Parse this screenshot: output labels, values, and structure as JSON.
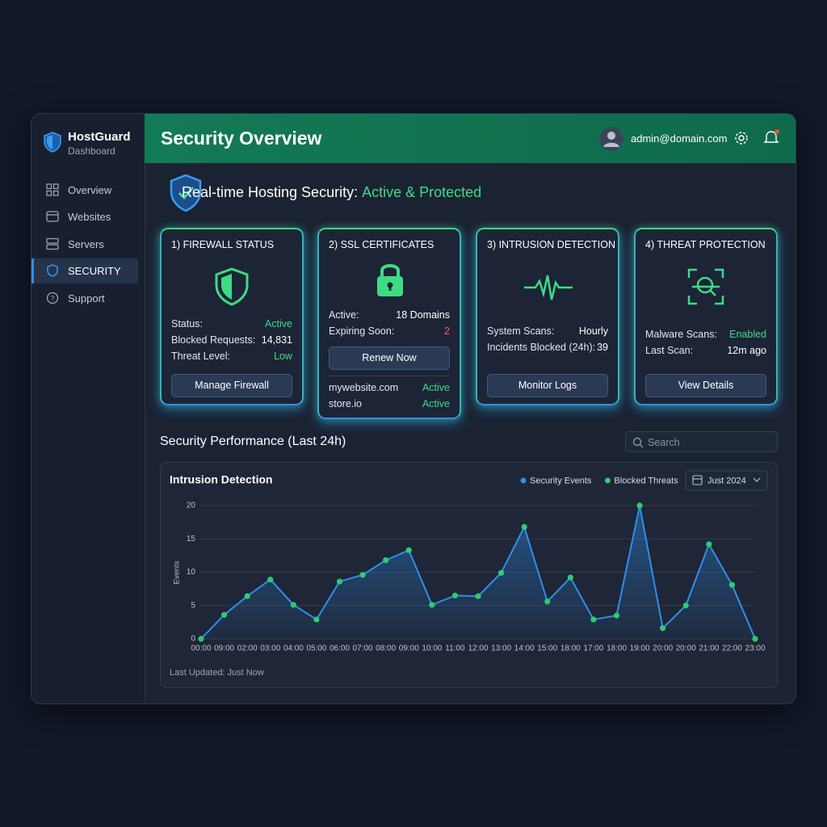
{
  "sidebar": {
    "brand": "HostGuard",
    "subtitle": "Dashboard",
    "nav": [
      "Overview",
      "Websites",
      "Servers",
      "SECURITY",
      "Support"
    ]
  },
  "header": {
    "title": "Security Overview",
    "user": "admin@domain.com"
  },
  "banner": {
    "label": "Real-time Hosting Security:",
    "status": "Active & Protected"
  },
  "cards": [
    {
      "title": "1) FIREWALL STATUS",
      "rows": [
        [
          "Status:",
          "Active"
        ],
        [
          "Blocked Requests:",
          "14,831"
        ],
        [
          "Threat Level:",
          "Low"
        ]
      ],
      "button": "Manage Firewall"
    },
    {
      "title": "2) SSL CERTIFICATES",
      "rows": [
        [
          "Active:",
          "18 Domains"
        ],
        [
          "Expiring Soon:",
          "2"
        ]
      ],
      "button": "Renew Now",
      "domains": [
        [
          "mywebsite.com",
          "Active"
        ],
        [
          "store.io",
          "Active"
        ]
      ]
    },
    {
      "title": "3) INTRUSION DETECTION",
      "rows": [
        [
          "System Scans:",
          "Hourly"
        ],
        [
          "Incidents Blocked (24h):",
          "39"
        ]
      ],
      "button": "Monitor Logs"
    },
    {
      "title": "4) THREAT PROTECTION",
      "rows": [
        [
          "Malware Scans:",
          "Enabled"
        ],
        [
          "Last Scan:",
          "12m ago"
        ]
      ],
      "button": "View Details"
    }
  ],
  "section": {
    "title": "Security Performance (Last 24h)",
    "search": "Search"
  },
  "chart_data": {
    "type": "line",
    "title": "Intrusion Detection",
    "y_label": "Events",
    "filter": "Just 2024",
    "categories": [
      "00:00",
      "09:00",
      "02:00",
      "03:00",
      "04:00",
      "05:00",
      "06:00",
      "07:00",
      "08:00",
      "09:00",
      "10:00",
      "11:00",
      "12:00",
      "13:00",
      "14:00",
      "15:00",
      "18:00",
      "17:00",
      "18:00",
      "19:00",
      "20:00",
      "20:00",
      "21:00",
      "22:00",
      "23:00"
    ],
    "series": [
      {
        "name": "Security Events",
        "color": "#2f8fe8",
        "mode": "line",
        "values": [
          0,
          3.6,
          6.4,
          8.9,
          5.1,
          2.9,
          8.6,
          9.6,
          11.8,
          13.3,
          5.1,
          6.5,
          6.4,
          9.9,
          16.8,
          5.6,
          9.2,
          2.9,
          3.5,
          20,
          1.6,
          5,
          14.2,
          8.1,
          0
        ]
      },
      {
        "name": "Blocked Threats",
        "color": "#2ecc71",
        "mode": "markers",
        "values": [
          0,
          3.6,
          6.4,
          8.9,
          5.1,
          2.9,
          8.6,
          9.6,
          11.8,
          13.3,
          5.1,
          6.5,
          6.4,
          9.9,
          16.8,
          5.6,
          9.2,
          2.9,
          3.5,
          20,
          1.6,
          5,
          14.2,
          8.1,
          0
        ]
      }
    ],
    "ylim": [
      0,
      20
    ],
    "yticks": [
      0,
      5,
      10,
      15,
      20
    ],
    "grid": true
  },
  "footer": "Last Updated: Just Now"
}
